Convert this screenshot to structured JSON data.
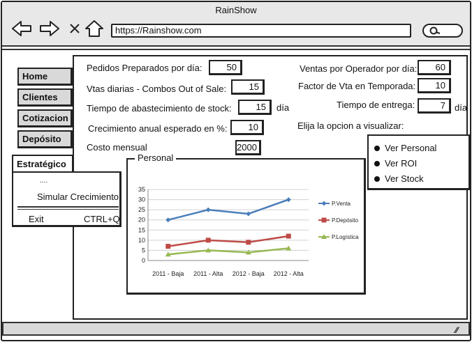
{
  "window": {
    "title": "RainShow",
    "url": "https://Rainshow.com"
  },
  "toolbar": {
    "back_icon": "arrow-left-icon",
    "forward_icon": "arrow-right-icon",
    "close_icon": "close-icon",
    "home_icon": "home-icon",
    "search_icon": "search-icon"
  },
  "sidebar": {
    "items": [
      {
        "label": "Home"
      },
      {
        "label": "Clientes"
      },
      {
        "label": "Cotizacion"
      },
      {
        "label": "Depósito"
      }
    ],
    "active": {
      "label": "Estratégico"
    }
  },
  "menu": {
    "dots": "....",
    "item": "Simular Crecimiento",
    "exit": "Exit",
    "shortcut": "CTRL+Q"
  },
  "form": {
    "pedidos_label": "Pedidos Preparados por día:",
    "pedidos_value": "50",
    "combos_label": "Vtas diarias - Combos Out of Sale:",
    "combos_value": "15",
    "abastecimiento_label": "Tiempo de abastecimiento de stock:",
    "abastecimiento_value": "15",
    "abastecimiento_unit": "día",
    "crecimiento_label": "Crecimiento anual esperado en %:",
    "crecimiento_value": "10",
    "costo_label": "Costo mensual",
    "costo_value": "2000",
    "ventas_op_label": "Ventas por Operador por día:",
    "ventas_op_value": "60",
    "factor_label": "Factor de Vta en Temporada:",
    "factor_value": "10",
    "entrega_label": "Tiempo de entrega:",
    "entrega_value": "7",
    "entrega_unit": "día",
    "visualizar_label": "Elija la opcion a visualizar:"
  },
  "options": [
    {
      "label": "Ver Personal"
    },
    {
      "label": "Ver ROI"
    },
    {
      "label": "Ver Stock"
    }
  ],
  "chart_group_title": "Personal",
  "chart_data": {
    "type": "line",
    "categories": [
      "2011 - Baja",
      "2011 - Alta",
      "2012 - Baja",
      "2012 - Alta"
    ],
    "ylim": [
      0,
      35
    ],
    "yticks": [
      0,
      5,
      10,
      15,
      20,
      25,
      30,
      35
    ],
    "grid": true,
    "legend": "right",
    "series": [
      {
        "name": "P.Venta",
        "values": [
          20,
          25,
          23,
          30
        ],
        "color": "#4a7ebb",
        "marker": "diamond"
      },
      {
        "name": "P.Depósito",
        "values": [
          7,
          10,
          9,
          12
        ],
        "color": "#be4b48",
        "marker": "square"
      },
      {
        "name": "P.Logística",
        "values": [
          3,
          5,
          4,
          6
        ],
        "color": "#98b954",
        "marker": "triangle"
      }
    ]
  }
}
